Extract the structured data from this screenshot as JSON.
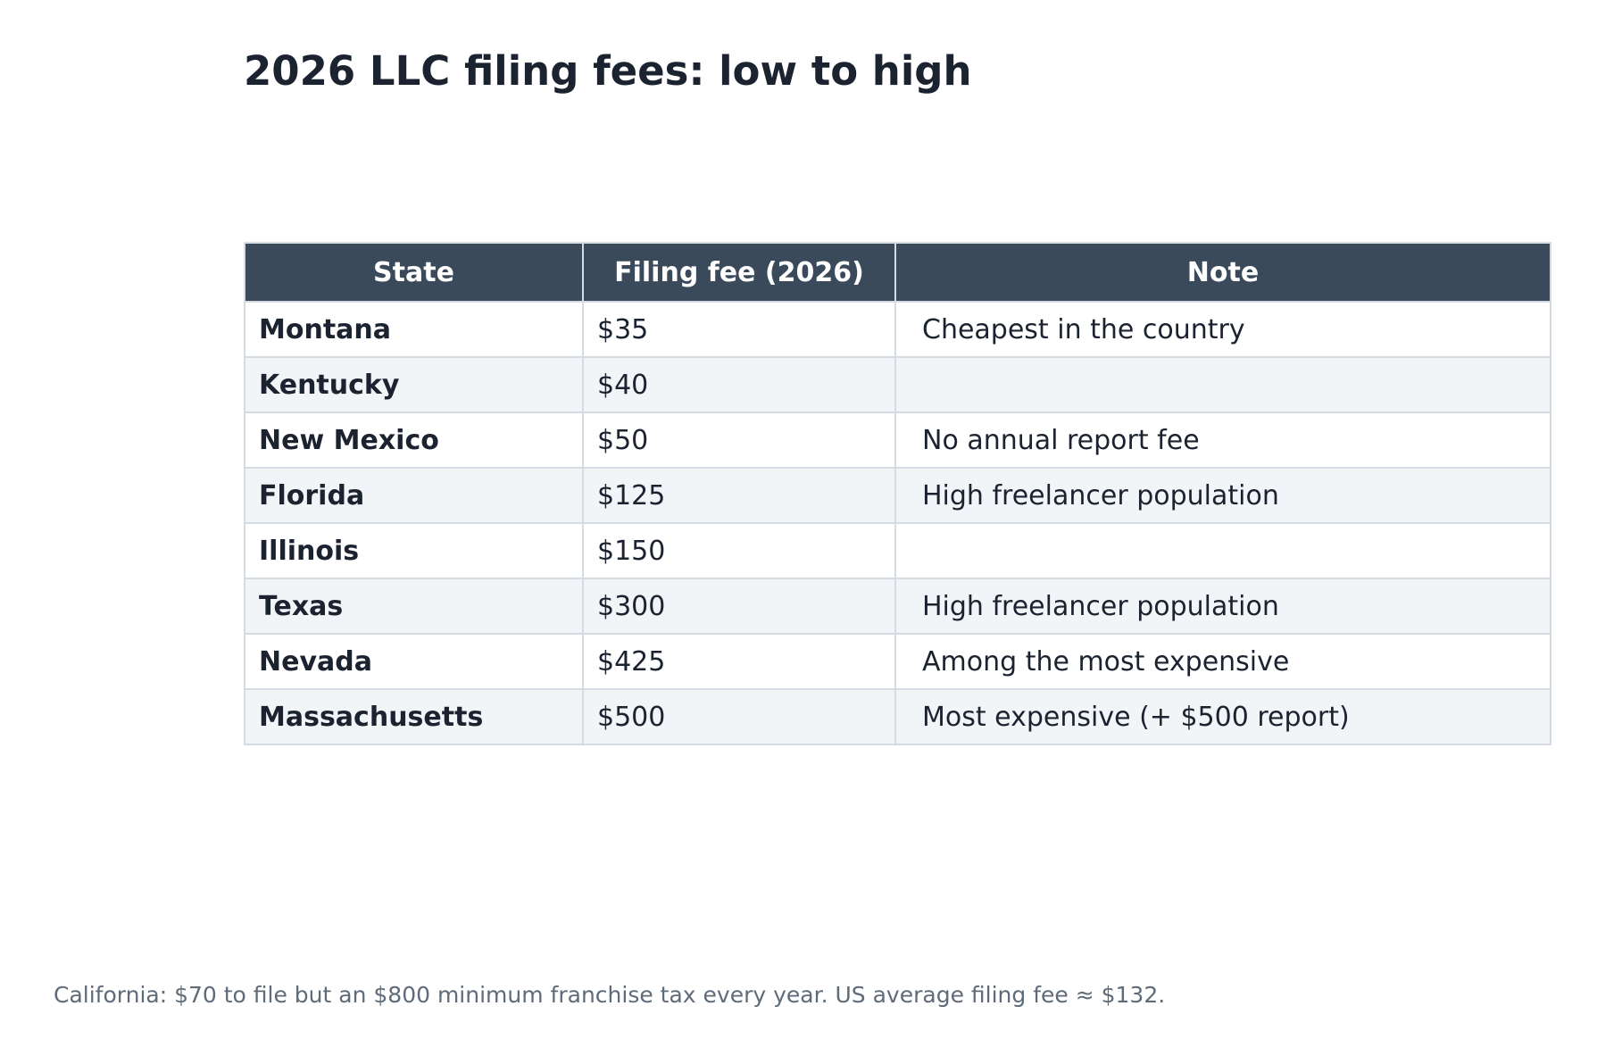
{
  "title": "2026 LLC filing fees: low to high",
  "chart_data": {
    "type": "table",
    "columns": [
      "State",
      "Filing fee (2026)",
      "Note"
    ],
    "rows": [
      {
        "state": "Montana",
        "fee": "$35",
        "note": "Cheapest in the country"
      },
      {
        "state": "Kentucky",
        "fee": "$40",
        "note": ""
      },
      {
        "state": "New Mexico",
        "fee": "$50",
        "note": "No annual report fee"
      },
      {
        "state": "Florida",
        "fee": "$125",
        "note": "High freelancer population"
      },
      {
        "state": "Illinois",
        "fee": "$150",
        "note": ""
      },
      {
        "state": "Texas",
        "fee": "$300",
        "note": "High freelancer population"
      },
      {
        "state": "Nevada",
        "fee": "$425",
        "note": "Among the most expensive"
      },
      {
        "state": "Massachusetts",
        "fee": "$500",
        "note": "Most expensive (+ $500 report)"
      }
    ]
  },
  "footnote": "California: $70 to file but an $800 minimum franchise tax every year. US average filing fee ≈ $132.",
  "colors": {
    "header_bg": "#3a4a5b",
    "row_alt_bg": "#f2f5f8",
    "border": "#d5dbe2",
    "text": "#1c2330",
    "footnote": "#5f6b79"
  }
}
